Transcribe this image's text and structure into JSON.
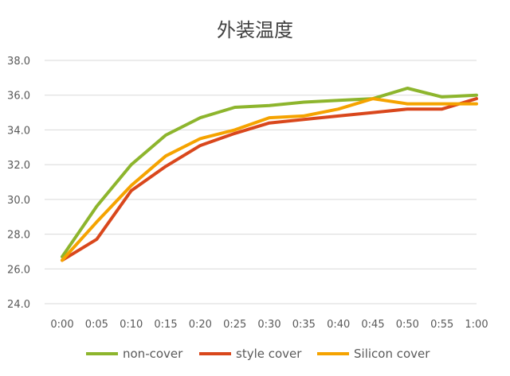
{
  "chart_data": {
    "type": "line",
    "title": "外装温度",
    "xlabel": "",
    "ylabel": "",
    "x": [
      "0:00",
      "0:05",
      "0:10",
      "0:15",
      "0:20",
      "0:25",
      "0:30",
      "0:35",
      "0:40",
      "0:45",
      "0:50",
      "0:55",
      "1:00"
    ],
    "ylim": [
      24.0,
      38.0
    ],
    "yticks": [
      "24.0",
      "26.0",
      "28.0",
      "30.0",
      "32.0",
      "34.0",
      "36.0",
      "38.0"
    ],
    "grid": "horizontal",
    "legend": "bottom",
    "series": [
      {
        "name": "non-cover",
        "color": "#8DB52D",
        "values": [
          26.7,
          29.6,
          32.0,
          33.7,
          34.7,
          35.3,
          35.4,
          35.6,
          35.7,
          35.8,
          36.4,
          35.9,
          36.0
        ]
      },
      {
        "name": "style cover",
        "color": "#D9471C",
        "values": [
          26.5,
          27.7,
          30.5,
          31.9,
          33.1,
          33.8,
          34.4,
          34.6,
          34.8,
          35.0,
          35.2,
          35.2,
          35.8
        ]
      },
      {
        "name": "Silicon cover",
        "color": "#F5A300",
        "values": [
          26.5,
          28.7,
          30.8,
          32.5,
          33.5,
          34.0,
          34.7,
          34.8,
          35.2,
          35.8,
          35.5,
          35.5,
          35.5
        ]
      }
    ]
  }
}
